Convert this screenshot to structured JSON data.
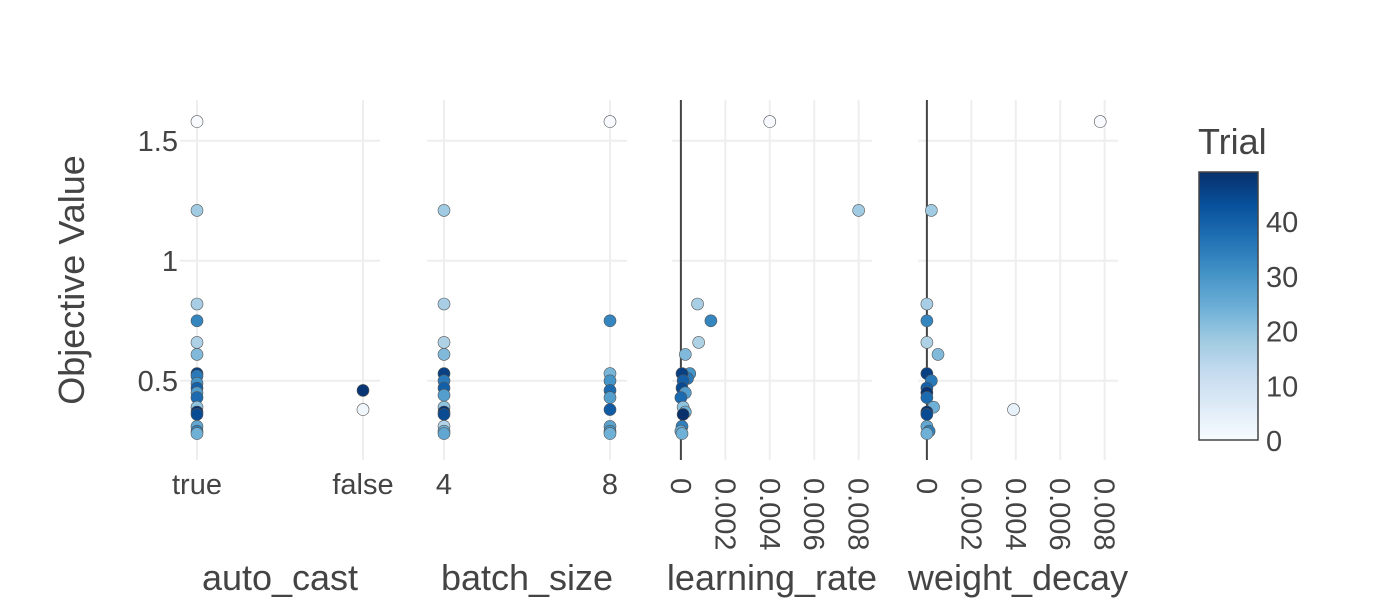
{
  "chart_data": {
    "type": "scatter",
    "y_axis": {
      "label": "Objective Value",
      "range": [
        0.17,
        1.67
      ],
      "ticks": [
        0.5,
        1,
        1.5
      ],
      "tick_labels": [
        "0.5",
        "1",
        "1.5"
      ],
      "grid": true
    },
    "colorbar": {
      "title": "Trial",
      "range": [
        0,
        49
      ],
      "ticks": [
        0,
        10,
        20,
        30,
        40
      ],
      "tick_labels": [
        "0",
        "10",
        "20",
        "30",
        "40"
      ],
      "colors": [
        "#f7fbff",
        "#deebf7",
        "#c6dbef",
        "#9ecae1",
        "#6baed6",
        "#4292c6",
        "#2171b5",
        "#08519c",
        "#08306b"
      ]
    },
    "panels": [
      {
        "xlabel": "auto_cast",
        "x_type": "category",
        "categories": [
          "true",
          "false"
        ],
        "points": [
          {
            "x": "true",
            "y": 1.58,
            "trial": 0
          },
          {
            "x": "true",
            "y": 1.21,
            "trial": 18
          },
          {
            "x": "true",
            "y": 0.82,
            "trial": 17
          },
          {
            "x": "true",
            "y": 0.75,
            "trial": 33
          },
          {
            "x": "true",
            "y": 0.66,
            "trial": 16
          },
          {
            "x": "true",
            "y": 0.61,
            "trial": 22
          },
          {
            "x": "true",
            "y": 0.53,
            "trial": 46
          },
          {
            "x": "true",
            "y": 0.52,
            "trial": 35
          },
          {
            "x": "true",
            "y": 0.49,
            "trial": 30
          },
          {
            "x": "true",
            "y": 0.47,
            "trial": 40
          },
          {
            "x": "true",
            "y": 0.45,
            "trial": 28
          },
          {
            "x": "true",
            "y": 0.43,
            "trial": 38
          },
          {
            "x": "true",
            "y": 0.39,
            "trial": 20
          },
          {
            "x": "true",
            "y": 0.37,
            "trial": 49
          },
          {
            "x": "true",
            "y": 0.36,
            "trial": 44
          },
          {
            "x": "true",
            "y": 0.31,
            "trial": 26
          },
          {
            "x": "true",
            "y": 0.29,
            "trial": 34
          },
          {
            "x": "true",
            "y": 0.28,
            "trial": 24
          },
          {
            "x": "false",
            "y": 0.46,
            "trial": 48
          },
          {
            "x": "false",
            "y": 0.38,
            "trial": 2
          }
        ]
      },
      {
        "xlabel": "batch_size",
        "x_type": "category",
        "categories": [
          "4",
          "8"
        ],
        "points": [
          {
            "x": "4",
            "y": 1.21,
            "trial": 18
          },
          {
            "x": "4",
            "y": 0.82,
            "trial": 17
          },
          {
            "x": "4",
            "y": 0.66,
            "trial": 16
          },
          {
            "x": "4",
            "y": 0.61,
            "trial": 22
          },
          {
            "x": "4",
            "y": 0.53,
            "trial": 46
          },
          {
            "x": "4",
            "y": 0.5,
            "trial": 35
          },
          {
            "x": "4",
            "y": 0.47,
            "trial": 40
          },
          {
            "x": "4",
            "y": 0.44,
            "trial": 28
          },
          {
            "x": "4",
            "y": 0.39,
            "trial": 20
          },
          {
            "x": "4",
            "y": 0.37,
            "trial": 49
          },
          {
            "x": "4",
            "y": 0.36,
            "trial": 44
          },
          {
            "x": "4",
            "y": 0.31,
            "trial": 15
          },
          {
            "x": "4",
            "y": 0.29,
            "trial": 24
          },
          {
            "x": "4",
            "y": 0.28,
            "trial": 26
          },
          {
            "x": "8",
            "y": 1.58,
            "trial": 0
          },
          {
            "x": "8",
            "y": 0.75,
            "trial": 33
          },
          {
            "x": "8",
            "y": 0.53,
            "trial": 23
          },
          {
            "x": "8",
            "y": 0.5,
            "trial": 30
          },
          {
            "x": "8",
            "y": 0.46,
            "trial": 38
          },
          {
            "x": "8",
            "y": 0.43,
            "trial": 28
          },
          {
            "x": "8",
            "y": 0.38,
            "trial": 41
          },
          {
            "x": "8",
            "y": 0.31,
            "trial": 27
          },
          {
            "x": "8",
            "y": 0.29,
            "trial": 30
          },
          {
            "x": "8",
            "y": 0.28,
            "trial": 24
          }
        ]
      },
      {
        "xlabel": "learning_rate",
        "x_type": "linear",
        "x_range": [
          -0.0004,
          0.0086
        ],
        "ticks": [
          0,
          0.002,
          0.004,
          0.006,
          0.008
        ],
        "tick_labels": [
          "0",
          "0.002",
          "0.004",
          "0.006",
          "0.008"
        ],
        "points": [
          {
            "x": 0.004,
            "y": 1.58,
            "trial": 0
          },
          {
            "x": 0.008,
            "y": 1.21,
            "trial": 18
          },
          {
            "x": 0.00075,
            "y": 0.82,
            "trial": 17
          },
          {
            "x": 0.00135,
            "y": 0.75,
            "trial": 33
          },
          {
            "x": 0.0008,
            "y": 0.66,
            "trial": 16
          },
          {
            "x": 0.0002,
            "y": 0.61,
            "trial": 22
          },
          {
            "x": 0.0004,
            "y": 0.53,
            "trial": 30
          },
          {
            "x": 0.0003,
            "y": 0.51,
            "trial": 35
          },
          {
            "x": 5e-05,
            "y": 0.53,
            "trial": 46
          },
          {
            "x": 0.0001,
            "y": 0.5,
            "trial": 40
          },
          {
            "x": 5e-05,
            "y": 0.47,
            "trial": 44
          },
          {
            "x": 0.0002,
            "y": 0.45,
            "trial": 28
          },
          {
            "x": 0.0,
            "y": 0.43,
            "trial": 38
          },
          {
            "x": 0.0001,
            "y": 0.39,
            "trial": 20
          },
          {
            "x": 0.0002,
            "y": 0.37,
            "trial": 24
          },
          {
            "x": 0.0001,
            "y": 0.36,
            "trial": 49
          },
          {
            "x": 5e-05,
            "y": 0.31,
            "trial": 34
          },
          {
            "x": 0.0,
            "y": 0.29,
            "trial": 26
          },
          {
            "x": 5e-05,
            "y": 0.28,
            "trial": 24
          }
        ]
      },
      {
        "xlabel": "weight_decay",
        "x_type": "linear",
        "x_range": [
          -0.0004,
          0.0086
        ],
        "ticks": [
          0,
          0.002,
          0.004,
          0.006,
          0.008
        ],
        "tick_labels": [
          "0",
          "0.002",
          "0.004",
          "0.006",
          "0.008"
        ],
        "points": [
          {
            "x": 0.0078,
            "y": 1.58,
            "trial": 0
          },
          {
            "x": 0.0002,
            "y": 1.21,
            "trial": 18
          },
          {
            "x": 0.0,
            "y": 0.82,
            "trial": 17
          },
          {
            "x": 0.0,
            "y": 0.75,
            "trial": 33
          },
          {
            "x": 0.0,
            "y": 0.66,
            "trial": 16
          },
          {
            "x": 0.0005,
            "y": 0.61,
            "trial": 22
          },
          {
            "x": 0.0,
            "y": 0.53,
            "trial": 46
          },
          {
            "x": 0.0002,
            "y": 0.5,
            "trial": 35
          },
          {
            "x": 0.0,
            "y": 0.47,
            "trial": 40
          },
          {
            "x": 0.0,
            "y": 0.45,
            "trial": 48
          },
          {
            "x": 0.0,
            "y": 0.43,
            "trial": 38
          },
          {
            "x": 0.0003,
            "y": 0.39,
            "trial": 24
          },
          {
            "x": 0.0039,
            "y": 0.38,
            "trial": 4
          },
          {
            "x": 0.0,
            "y": 0.37,
            "trial": 49
          },
          {
            "x": 0.0,
            "y": 0.36,
            "trial": 44
          },
          {
            "x": 0.0,
            "y": 0.31,
            "trial": 26
          },
          {
            "x": 0.0001,
            "y": 0.29,
            "trial": 34
          },
          {
            "x": 0.0,
            "y": 0.28,
            "trial": 24
          }
        ]
      }
    ]
  }
}
